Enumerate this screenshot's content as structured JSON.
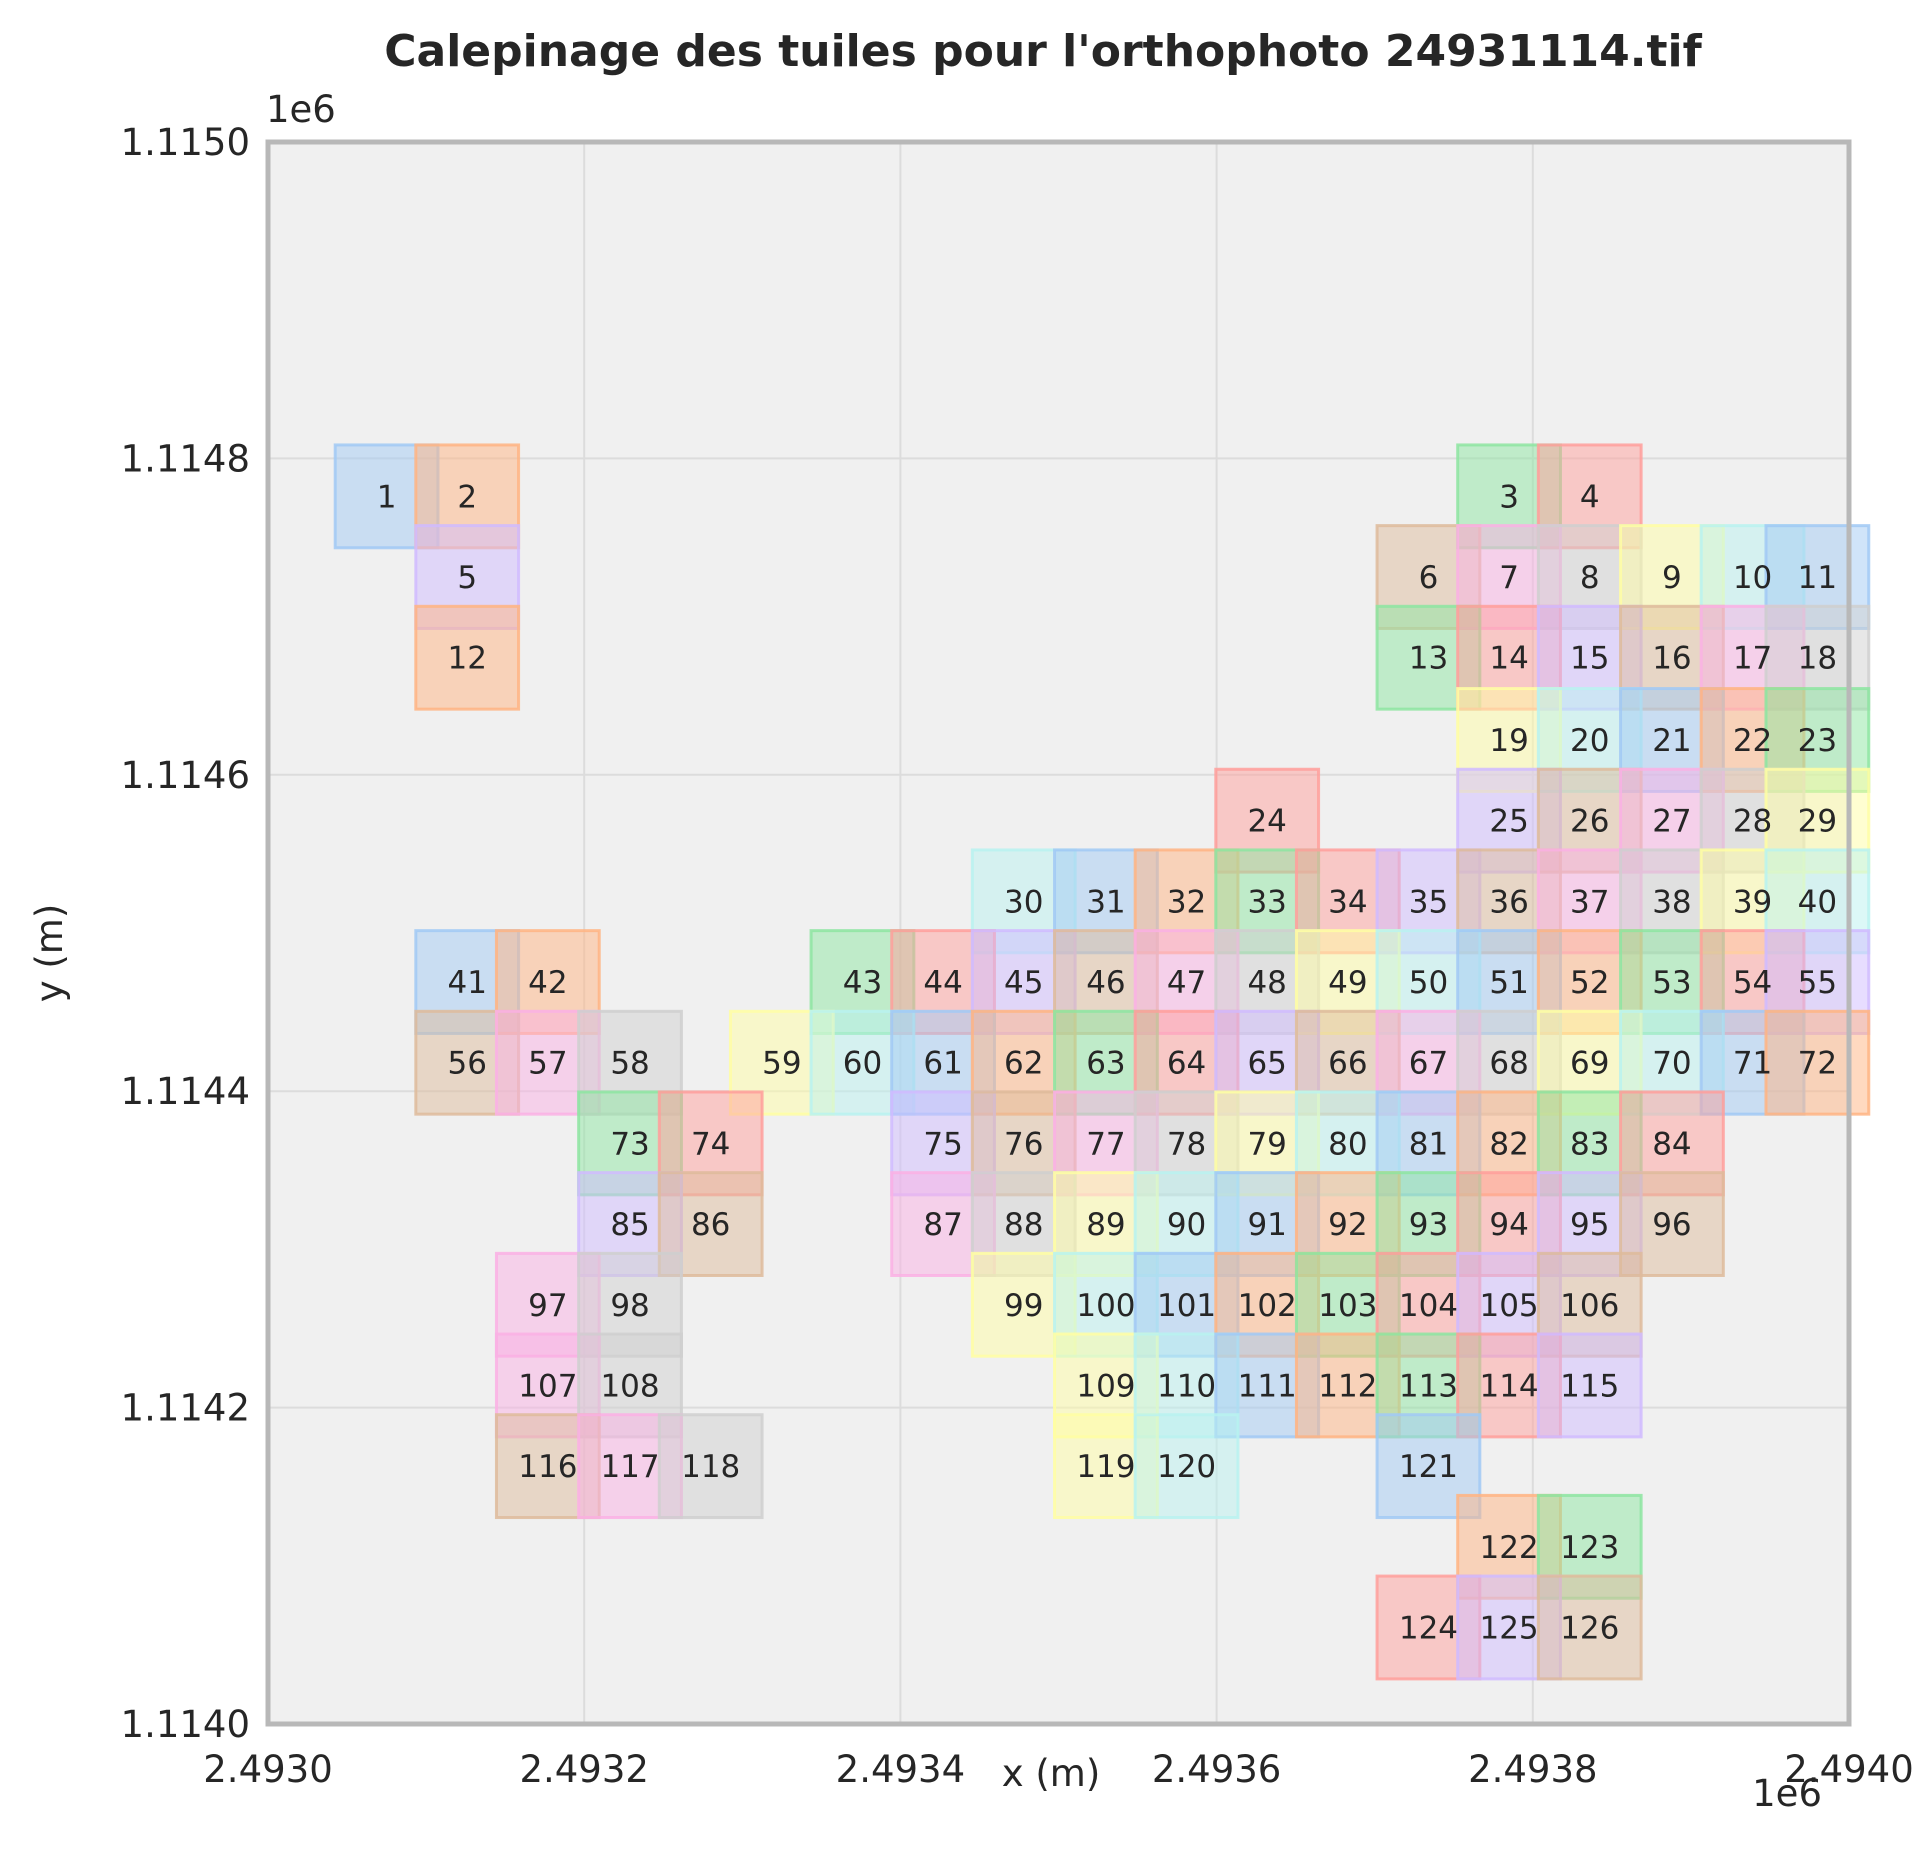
{
  "chart_data": {
    "type": "tile-layout",
    "title": "Calepinage des tuiles pour l'orthophoto 24931114.tif",
    "xlabel": "x (m)",
    "ylabel": "y (m)",
    "xlim": [
      2493000,
      2494000
    ],
    "ylim": [
      1114000,
      1115000
    ],
    "x_offset_label": "1e6",
    "y_offset_label": "1e6",
    "xticks": [
      {
        "value": 2493000,
        "label": "2.4930"
      },
      {
        "value": 2493200,
        "label": "2.4932"
      },
      {
        "value": 2493400,
        "label": "2.4934"
      },
      {
        "value": 2493600,
        "label": "2.4936"
      },
      {
        "value": 2493800,
        "label": "2.4938"
      },
      {
        "value": 2494000,
        "label": "2.4940"
      }
    ],
    "yticks": [
      {
        "value": 1114000,
        "label": "1.1140"
      },
      {
        "value": 1114200,
        "label": "1.1142"
      },
      {
        "value": 1114400,
        "label": "1.1144"
      },
      {
        "value": 1114600,
        "label": "1.1146"
      },
      {
        "value": 1114800,
        "label": "1.1148"
      },
      {
        "value": 1115000,
        "label": "1.1150"
      }
    ],
    "grid": true,
    "tile_size_m": 65,
    "tile_alpha": 0.5,
    "palette": [
      "#a1c9f4",
      "#ffb482",
      "#8de5a1",
      "#ff9f9b",
      "#d0bbff",
      "#debb9b",
      "#fab0e4",
      "#cfcfcf",
      "#fffea3",
      "#b9f2f0"
    ],
    "tiles": [
      {
        "id": 1,
        "x": 2493075,
        "y": 1114776
      },
      {
        "id": 2,
        "x": 2493126,
        "y": 1114776
      },
      {
        "id": 3,
        "x": 2493785,
        "y": 1114776
      },
      {
        "id": 4,
        "x": 2493836,
        "y": 1114776
      },
      {
        "id": 5,
        "x": 2493126,
        "y": 1114725
      },
      {
        "id": 6,
        "x": 2493734,
        "y": 1114725
      },
      {
        "id": 7,
        "x": 2493785,
        "y": 1114725
      },
      {
        "id": 8,
        "x": 2493836,
        "y": 1114725
      },
      {
        "id": 9,
        "x": 2493888,
        "y": 1114725
      },
      {
        "id": 10,
        "x": 2493939,
        "y": 1114725
      },
      {
        "id": 11,
        "x": 2493980,
        "y": 1114725
      },
      {
        "id": 12,
        "x": 2493126,
        "y": 1114674
      },
      {
        "id": 13,
        "x": 2493734,
        "y": 1114674
      },
      {
        "id": 14,
        "x": 2493785,
        "y": 1114674
      },
      {
        "id": 15,
        "x": 2493836,
        "y": 1114674
      },
      {
        "id": 16,
        "x": 2493888,
        "y": 1114674
      },
      {
        "id": 17,
        "x": 2493939,
        "y": 1114674
      },
      {
        "id": 18,
        "x": 2493980,
        "y": 1114674
      },
      {
        "id": 19,
        "x": 2493785,
        "y": 1114622
      },
      {
        "id": 20,
        "x": 2493836,
        "y": 1114622
      },
      {
        "id": 21,
        "x": 2493888,
        "y": 1114622
      },
      {
        "id": 22,
        "x": 2493939,
        "y": 1114622
      },
      {
        "id": 23,
        "x": 2493980,
        "y": 1114622
      },
      {
        "id": 24,
        "x": 2493632,
        "y": 1114571
      },
      {
        "id": 25,
        "x": 2493785,
        "y": 1114571
      },
      {
        "id": 26,
        "x": 2493836,
        "y": 1114571
      },
      {
        "id": 27,
        "x": 2493888,
        "y": 1114571
      },
      {
        "id": 28,
        "x": 2493939,
        "y": 1114571
      },
      {
        "id": 29,
        "x": 2493980,
        "y": 1114571
      },
      {
        "id": 30,
        "x": 2493478,
        "y": 1114520
      },
      {
        "id": 31,
        "x": 2493530,
        "y": 1114520
      },
      {
        "id": 32,
        "x": 2493581,
        "y": 1114520
      },
      {
        "id": 33,
        "x": 2493632,
        "y": 1114520
      },
      {
        "id": 34,
        "x": 2493683,
        "y": 1114520
      },
      {
        "id": 35,
        "x": 2493734,
        "y": 1114520
      },
      {
        "id": 36,
        "x": 2493785,
        "y": 1114520
      },
      {
        "id": 37,
        "x": 2493836,
        "y": 1114520
      },
      {
        "id": 38,
        "x": 2493888,
        "y": 1114520
      },
      {
        "id": 39,
        "x": 2493939,
        "y": 1114520
      },
      {
        "id": 40,
        "x": 2493980,
        "y": 1114520
      },
      {
        "id": 41,
        "x": 2493126,
        "y": 1114469
      },
      {
        "id": 42,
        "x": 2493177,
        "y": 1114469
      },
      {
        "id": 43,
        "x": 2493376,
        "y": 1114469
      },
      {
        "id": 44,
        "x": 2493427,
        "y": 1114469
      },
      {
        "id": 45,
        "x": 2493478,
        "y": 1114469
      },
      {
        "id": 46,
        "x": 2493530,
        "y": 1114469
      },
      {
        "id": 47,
        "x": 2493581,
        "y": 1114469
      },
      {
        "id": 48,
        "x": 2493632,
        "y": 1114469
      },
      {
        "id": 49,
        "x": 2493683,
        "y": 1114469
      },
      {
        "id": 50,
        "x": 2493734,
        "y": 1114469
      },
      {
        "id": 51,
        "x": 2493785,
        "y": 1114469
      },
      {
        "id": 52,
        "x": 2493836,
        "y": 1114469
      },
      {
        "id": 53,
        "x": 2493888,
        "y": 1114469
      },
      {
        "id": 54,
        "x": 2493939,
        "y": 1114469
      },
      {
        "id": 55,
        "x": 2493980,
        "y": 1114469
      },
      {
        "id": 56,
        "x": 2493126,
        "y": 1114418
      },
      {
        "id": 57,
        "x": 2493177,
        "y": 1114418
      },
      {
        "id": 58,
        "x": 2493229,
        "y": 1114418
      },
      {
        "id": 59,
        "x": 2493325,
        "y": 1114418
      },
      {
        "id": 60,
        "x": 2493376,
        "y": 1114418
      },
      {
        "id": 61,
        "x": 2493427,
        "y": 1114418
      },
      {
        "id": 62,
        "x": 2493478,
        "y": 1114418
      },
      {
        "id": 63,
        "x": 2493530,
        "y": 1114418
      },
      {
        "id": 64,
        "x": 2493581,
        "y": 1114418
      },
      {
        "id": 65,
        "x": 2493632,
        "y": 1114418
      },
      {
        "id": 66,
        "x": 2493683,
        "y": 1114418
      },
      {
        "id": 67,
        "x": 2493734,
        "y": 1114418
      },
      {
        "id": 68,
        "x": 2493785,
        "y": 1114418
      },
      {
        "id": 69,
        "x": 2493836,
        "y": 1114418
      },
      {
        "id": 70,
        "x": 2493888,
        "y": 1114418
      },
      {
        "id": 71,
        "x": 2493939,
        "y": 1114418
      },
      {
        "id": 72,
        "x": 2493980,
        "y": 1114418
      },
      {
        "id": 73,
        "x": 2493229,
        "y": 1114367
      },
      {
        "id": 74,
        "x": 2493280,
        "y": 1114367
      },
      {
        "id": 75,
        "x": 2493427,
        "y": 1114367
      },
      {
        "id": 76,
        "x": 2493478,
        "y": 1114367
      },
      {
        "id": 77,
        "x": 2493530,
        "y": 1114367
      },
      {
        "id": 78,
        "x": 2493581,
        "y": 1114367
      },
      {
        "id": 79,
        "x": 2493632,
        "y": 1114367
      },
      {
        "id": 80,
        "x": 2493683,
        "y": 1114367
      },
      {
        "id": 81,
        "x": 2493734,
        "y": 1114367
      },
      {
        "id": 82,
        "x": 2493785,
        "y": 1114367
      },
      {
        "id": 83,
        "x": 2493836,
        "y": 1114367
      },
      {
        "id": 84,
        "x": 2493888,
        "y": 1114367
      },
      {
        "id": 85,
        "x": 2493229,
        "y": 1114316
      },
      {
        "id": 86,
        "x": 2493280,
        "y": 1114316
      },
      {
        "id": 87,
        "x": 2493427,
        "y": 1114316
      },
      {
        "id": 88,
        "x": 2493478,
        "y": 1114316
      },
      {
        "id": 89,
        "x": 2493530,
        "y": 1114316
      },
      {
        "id": 90,
        "x": 2493581,
        "y": 1114316
      },
      {
        "id": 91,
        "x": 2493632,
        "y": 1114316
      },
      {
        "id": 92,
        "x": 2493683,
        "y": 1114316
      },
      {
        "id": 93,
        "x": 2493734,
        "y": 1114316
      },
      {
        "id": 94,
        "x": 2493785,
        "y": 1114316
      },
      {
        "id": 95,
        "x": 2493836,
        "y": 1114316
      },
      {
        "id": 96,
        "x": 2493888,
        "y": 1114316
      },
      {
        "id": 97,
        "x": 2493177,
        "y": 1114265
      },
      {
        "id": 98,
        "x": 2493229,
        "y": 1114265
      },
      {
        "id": 99,
        "x": 2493478,
        "y": 1114265
      },
      {
        "id": 100,
        "x": 2493530,
        "y": 1114265
      },
      {
        "id": 101,
        "x": 2493581,
        "y": 1114265
      },
      {
        "id": 102,
        "x": 2493632,
        "y": 1114265
      },
      {
        "id": 103,
        "x": 2493683,
        "y": 1114265
      },
      {
        "id": 104,
        "x": 2493734,
        "y": 1114265
      },
      {
        "id": 105,
        "x": 2493785,
        "y": 1114265
      },
      {
        "id": 106,
        "x": 2493836,
        "y": 1114265
      },
      {
        "id": 107,
        "x": 2493177,
        "y": 1114214
      },
      {
        "id": 108,
        "x": 2493229,
        "y": 1114214
      },
      {
        "id": 109,
        "x": 2493530,
        "y": 1114214
      },
      {
        "id": 110,
        "x": 2493581,
        "y": 1114214
      },
      {
        "id": 111,
        "x": 2493632,
        "y": 1114214
      },
      {
        "id": 112,
        "x": 2493683,
        "y": 1114214
      },
      {
        "id": 113,
        "x": 2493734,
        "y": 1114214
      },
      {
        "id": 114,
        "x": 2493785,
        "y": 1114214
      },
      {
        "id": 115,
        "x": 2493836,
        "y": 1114214
      },
      {
        "id": 116,
        "x": 2493177,
        "y": 1114163
      },
      {
        "id": 117,
        "x": 2493229,
        "y": 1114163
      },
      {
        "id": 118,
        "x": 2493280,
        "y": 1114163
      },
      {
        "id": 119,
        "x": 2493530,
        "y": 1114163
      },
      {
        "id": 120,
        "x": 2493581,
        "y": 1114163
      },
      {
        "id": 121,
        "x": 2493734,
        "y": 1114163
      },
      {
        "id": 122,
        "x": 2493785,
        "y": 1114112
      },
      {
        "id": 123,
        "x": 2493836,
        "y": 1114112
      },
      {
        "id": 124,
        "x": 2493734,
        "y": 1114061
      },
      {
        "id": 125,
        "x": 2493785,
        "y": 1114061
      },
      {
        "id": 126,
        "x": 2493836,
        "y": 1114061
      }
    ]
  }
}
